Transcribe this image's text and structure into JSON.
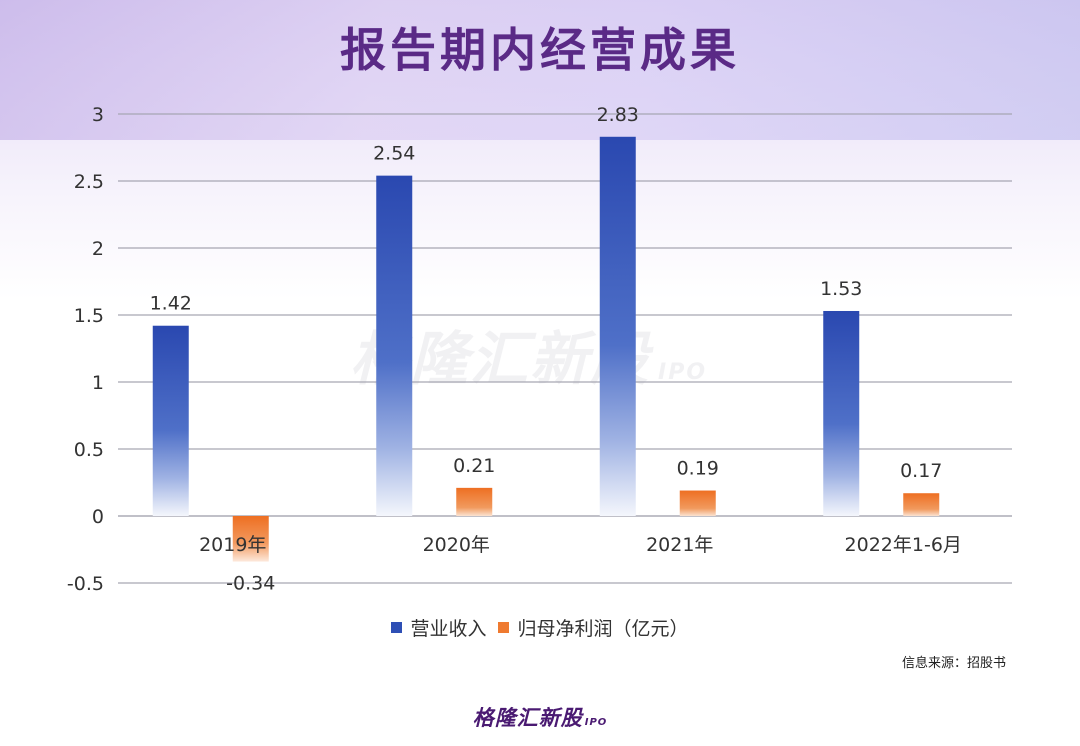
{
  "title": "报告期内经营成果",
  "watermark": {
    "brand": "格隆汇新股",
    "suffix": "IPO"
  },
  "source": "信息来源：招股书",
  "footer": {
    "brand": "格隆汇新股",
    "suffix": "IPO"
  },
  "legend": {
    "unit_note": "（亿元）"
  },
  "colors": {
    "revenue": "#2e4fb5",
    "profit": "#ef7a30",
    "title": "#5a2a86",
    "grid": "#8c8c9a"
  },
  "chart_data": {
    "type": "bar",
    "title": "报告期内经营成果",
    "categories": [
      "2019年",
      "2020年",
      "2021年",
      "2022年1-6月"
    ],
    "series": [
      {
        "name": "营业收入",
        "values": [
          1.42,
          2.54,
          2.83,
          1.53
        ]
      },
      {
        "name": "归母净利润",
        "values": [
          -0.34,
          0.21,
          0.19,
          0.17
        ]
      }
    ],
    "ylim": [
      -0.5,
      3
    ],
    "yticks": [
      -0.5,
      0,
      0.5,
      1,
      1.5,
      2,
      2.5,
      3
    ],
    "ytick_labels": [
      "-0.5",
      "0",
      "0.5",
      "1",
      "1.5",
      "2",
      "2.5",
      "3"
    ],
    "data_labels": [
      [
        "1.42",
        "2.54",
        "2.83",
        "1.53"
      ],
      [
        "-0.34",
        "0.21",
        "0.19",
        "0.17"
      ]
    ],
    "grid": true,
    "legend_position": "bottom"
  }
}
